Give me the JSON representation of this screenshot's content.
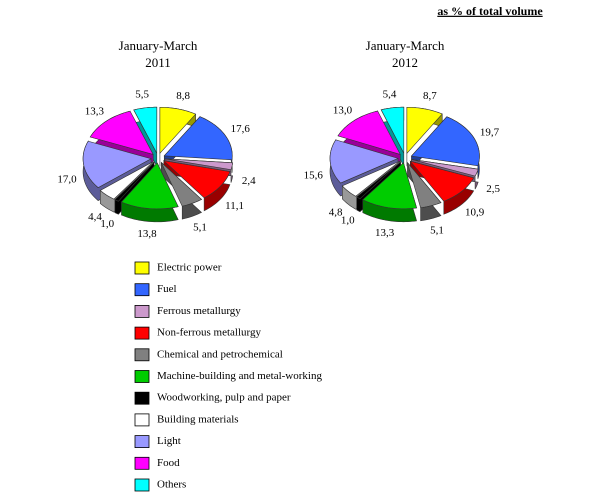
{
  "header": "as % of total volume",
  "chart_data": [
    {
      "type": "pie",
      "title": "January-March",
      "subtitle": "2011",
      "categories": [
        "Electric power",
        "Fuel",
        "Ferrous metallurgy",
        "Non-ferrous metallurgy",
        "Chemical and petrochemical",
        "Machine-building and metal-working",
        "Woodworking, pulp and paper",
        "Building materials",
        "Light",
        "Food",
        "Others"
      ],
      "colors": [
        "#ffff00",
        "#3366ff",
        "#cc99cc",
        "#ff0000",
        "#808080",
        "#00cc00",
        "#000000",
        "#ffffff",
        "#9999ff",
        "#ff00ff",
        "#00ffff"
      ],
      "values": [
        8.8,
        17.6,
        2.4,
        11.1,
        5.1,
        13.8,
        1.0,
        4.4,
        17.0,
        13.3,
        5.5
      ],
      "value_labels": [
        "8,8",
        "17,6",
        "2,4",
        "11,1",
        "5,1",
        "13,8",
        "1,0",
        "4,4",
        "17,0",
        "13,3",
        "5,5"
      ]
    },
    {
      "type": "pie",
      "title": "January-March",
      "subtitle": "2012",
      "categories": [
        "Electric power",
        "Fuel",
        "Ferrous metallurgy",
        "Non-ferrous metallurgy",
        "Chemical and petrochemical",
        "Machine-building and metal-working",
        "Woodworking, pulp and paper",
        "Building materials",
        "Light",
        "Food",
        "Others"
      ],
      "colors": [
        "#ffff00",
        "#3366ff",
        "#cc99cc",
        "#ff0000",
        "#808080",
        "#00cc00",
        "#000000",
        "#ffffff",
        "#9999ff",
        "#ff00ff",
        "#00ffff"
      ],
      "values": [
        8.7,
        19.7,
        2.5,
        10.9,
        5.1,
        13.3,
        1.0,
        4.8,
        15.6,
        13.0,
        5.4
      ],
      "value_labels": [
        "8,7",
        "19,7",
        "2,5",
        "10,9",
        "5,1",
        "13,3",
        "1,0",
        "4,8",
        "15,6",
        "13,0",
        "5,4"
      ]
    }
  ]
}
